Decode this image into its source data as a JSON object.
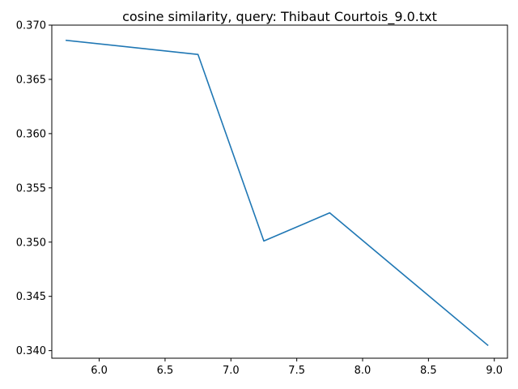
{
  "chart_data": {
    "type": "line",
    "title": "cosine similarity, query: Thibaut Courtois_9.0.txt",
    "xlabel": "",
    "ylabel": "",
    "xlim": [
      5.64,
      9.1
    ],
    "ylim": [
      0.3393,
      0.37
    ],
    "grid": false,
    "legend": "none",
    "x_ticks": [
      6.0,
      6.5,
      7.0,
      7.5,
      8.0,
      8.5,
      9.0
    ],
    "x_tick_labels": [
      "6.0",
      "6.5",
      "7.0",
      "7.5",
      "8.0",
      "8.5",
      "9.0"
    ],
    "y_ticks": [
      0.34,
      0.345,
      0.35,
      0.355,
      0.36,
      0.365,
      0.37
    ],
    "y_tick_labels": [
      "0.340",
      "0.345",
      "0.350",
      "0.355",
      "0.360",
      "0.365",
      "0.370"
    ],
    "series": [
      {
        "color": "#1f77b4",
        "x": [
          5.75,
          6.75,
          7.25,
          7.75,
          8.95
        ],
        "y": [
          0.3686,
          0.3673,
          0.3501,
          0.3527,
          0.3405
        ]
      }
    ]
  }
}
